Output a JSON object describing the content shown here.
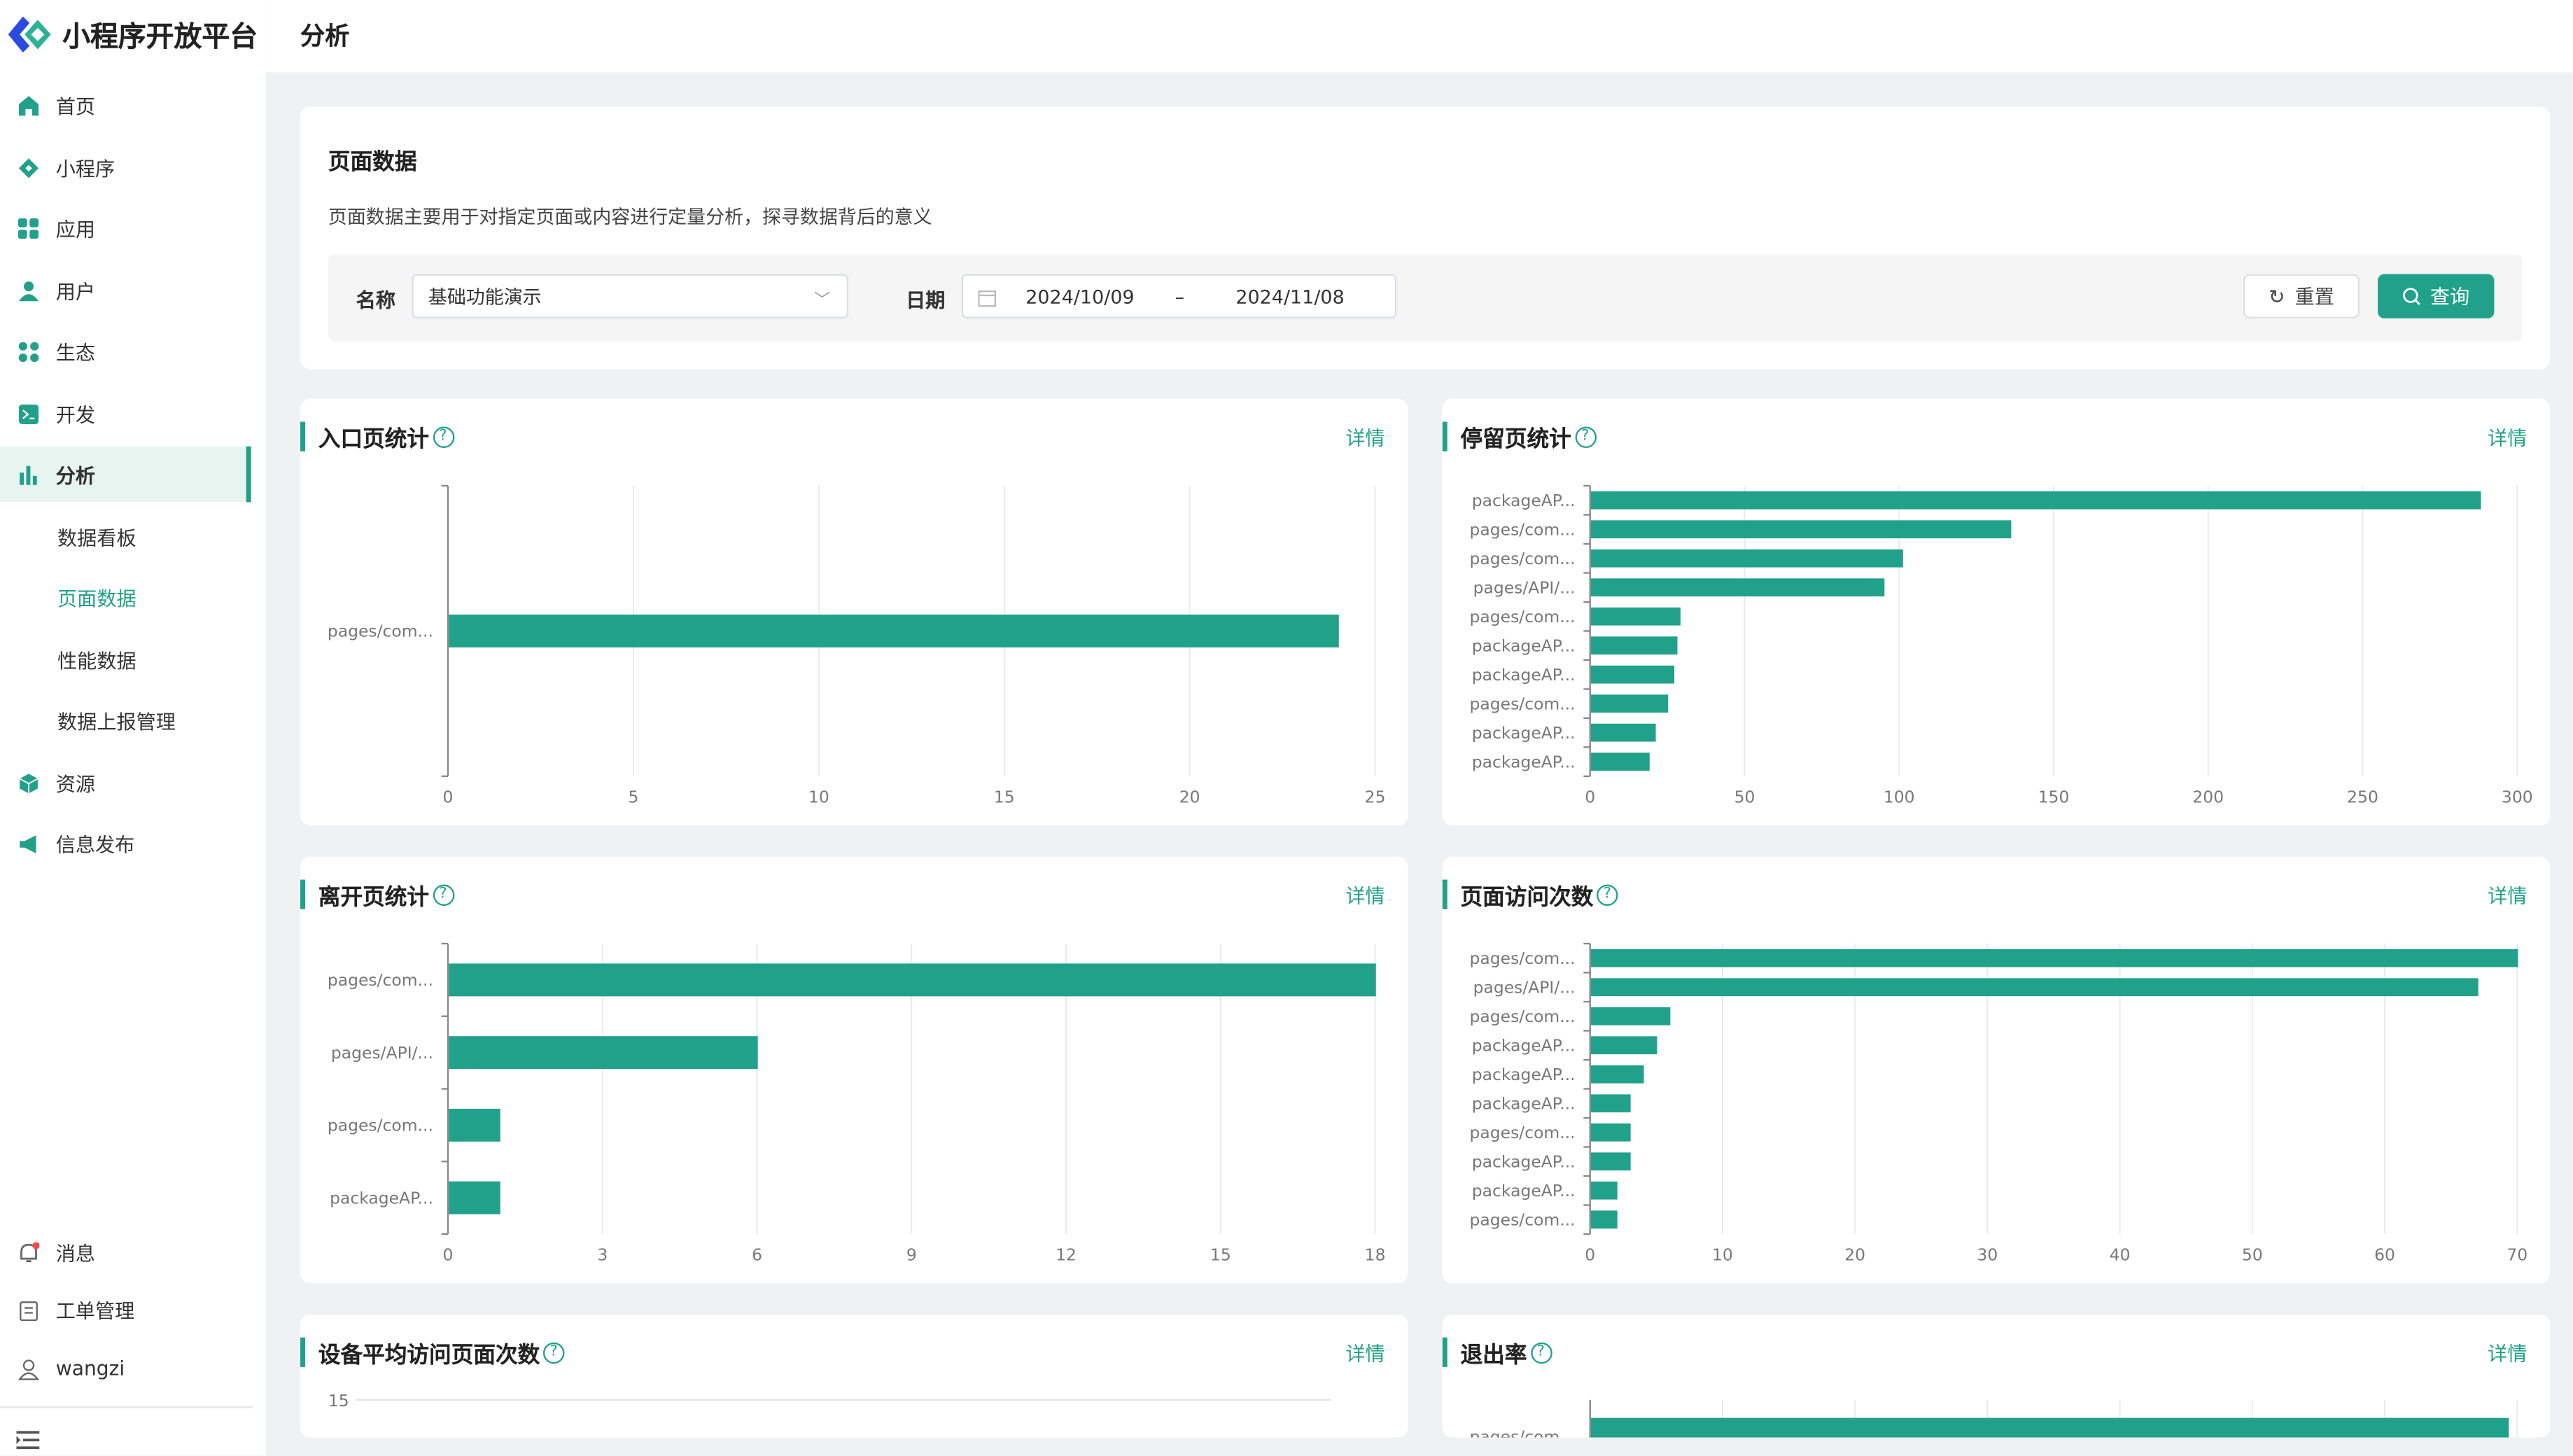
{
  "app": {
    "title": "小程序开放平台",
    "page_title": "分析"
  },
  "sidebar": {
    "items": [
      {
        "label": "首页",
        "icon": "home-icon"
      },
      {
        "label": "小程序",
        "icon": "diamond-icon"
      },
      {
        "label": "应用",
        "icon": "apps-icon"
      },
      {
        "label": "用户",
        "icon": "user-icon"
      },
      {
        "label": "生态",
        "icon": "ecology-icon"
      },
      {
        "label": "开发",
        "icon": "terminal-icon"
      },
      {
        "label": "分析",
        "icon": "bar-chart-icon"
      }
    ],
    "sub_items": [
      {
        "label": "数据看板"
      },
      {
        "label": "页面数据"
      },
      {
        "label": "性能数据"
      },
      {
        "label": "数据上报管理"
      }
    ],
    "items2": [
      {
        "label": "资源",
        "icon": "cube-icon"
      },
      {
        "label": "信息发布",
        "icon": "megaphone-icon"
      }
    ],
    "bottom": [
      {
        "label": "消息",
        "icon": "bell-icon"
      },
      {
        "label": "工单管理",
        "icon": "clipboard-icon"
      },
      {
        "label": "wangzi",
        "icon": "user-outline-icon"
      }
    ]
  },
  "panel": {
    "title": "页面数据",
    "description": "页面数据主要用于对指定页面或内容进行定量分析，探寻数据背后的意义",
    "name_label": "名称",
    "name_value": "基础功能演示",
    "date_label": "日期",
    "date_start": "2024/10/09",
    "date_sep": "–",
    "date_end": "2024/11/08",
    "reset": "重置",
    "query": "查询"
  },
  "detail_label": "详情",
  "colors": {
    "accent": "#22a18a"
  },
  "chart_data": [
    {
      "type": "bar",
      "orientation": "horizontal",
      "title": "入口页统计",
      "categories": [
        "pages/com..."
      ],
      "values": [
        24
      ],
      "xlim": [
        0,
        25
      ],
      "ticks": [
        0,
        5,
        10,
        15,
        20,
        25
      ]
    },
    {
      "type": "bar",
      "orientation": "horizontal",
      "title": "停留页统计",
      "categories": [
        "packageAP...",
        "pages/com...",
        "pages/com...",
        "pages/API/...",
        "pages/com...",
        "packageAP...",
        "packageAP...",
        "pages/com...",
        "packageAP...",
        "packageAP..."
      ],
      "values": [
        288,
        136,
        101,
        95,
        29,
        28,
        27,
        25,
        21,
        19
      ],
      "xlim": [
        0,
        300
      ],
      "ticks": [
        0,
        50,
        100,
        150,
        200,
        250,
        300
      ]
    },
    {
      "type": "bar",
      "orientation": "horizontal",
      "title": "离开页统计",
      "categories": [
        "pages/com...",
        "pages/API/...",
        "pages/com...",
        "packageAP..."
      ],
      "values": [
        18,
        6,
        1,
        1
      ],
      "xlim": [
        0,
        18
      ],
      "ticks": [
        0,
        3,
        6,
        9,
        12,
        15,
        18
      ]
    },
    {
      "type": "bar",
      "orientation": "horizontal",
      "title": "页面访问次数",
      "categories": [
        "pages/com...",
        "pages/API/...",
        "pages/com...",
        "packageAP...",
        "packageAP...",
        "packageAP...",
        "pages/com...",
        "packageAP...",
        "packageAP...",
        "pages/com..."
      ],
      "values": [
        70,
        67,
        6,
        5,
        4,
        3,
        3,
        3,
        2,
        2
      ],
      "xlim": [
        0,
        70
      ],
      "ticks": [
        0,
        10,
        20,
        30,
        40,
        50,
        60,
        70
      ]
    },
    {
      "type": "line",
      "title": "设备平均访问页面次数",
      "y_ticks_visible": [
        "15"
      ]
    },
    {
      "type": "bar",
      "orientation": "horizontal",
      "title": "退出率",
      "categories": [
        "pages/com..."
      ],
      "value_fraction_of_axis": [
        0.99
      ]
    }
  ]
}
